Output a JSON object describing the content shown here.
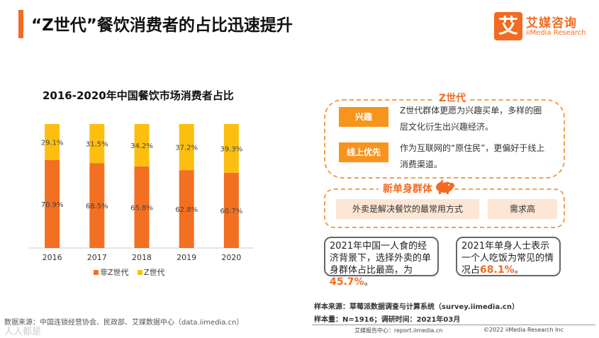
{
  "header": {
    "title": "“Z世代”餐饮消费者的占比迅速提升",
    "accent_color": "#f26b21"
  },
  "logo": {
    "mark": "艾",
    "name_cn": "艾媒咨询",
    "name_en": "iiMedia Research"
  },
  "chart_data": {
    "type": "bar",
    "stacked": true,
    "title": "2016-2020年中国餐饮市场消费者占比",
    "categories": [
      "2016",
      "2017",
      "2018",
      "2019",
      "2020"
    ],
    "series": [
      {
        "name": "非Z世代",
        "color": "#f36f21",
        "values": [
          70.9,
          68.5,
          65.8,
          62.8,
          60.7
        ],
        "labels": [
          "70.9%",
          "68.5%",
          "65.8%",
          "62.8%",
          "60.7%"
        ]
      },
      {
        "name": "Z世代",
        "color": "#fcbf0f",
        "values": [
          29.1,
          31.5,
          34.2,
          37.2,
          39.3
        ],
        "labels": [
          "29.1%",
          "31.5%",
          "34.2%",
          "37.2%",
          "39.3%"
        ]
      }
    ],
    "ylim": [
      0,
      100
    ],
    "xlabel": "",
    "ylabel": "",
    "legend": "bottom"
  },
  "panel": {
    "z_label": "Z世代",
    "z_items": [
      {
        "tag": "兴趣",
        "text": "Z世代群体更愿为兴趣买单，多样的圈层文化衍生出兴趣经济。"
      },
      {
        "tag": "线上优先",
        "text": "作为互联网的“原住民”，更偏好于线上消费渠道。"
      }
    ],
    "single_label": "新单身群体",
    "single_items": [
      "外卖是解决餐饮的最常用方式",
      "需求高"
    ],
    "card1": {
      "text": "2021年中国一人食的经济背景下，选择外卖的单身群体占比最高，为",
      "value": "45.7%",
      "end": "。"
    },
    "card2": {
      "text": "2021年单身人士表示一个人吃饭为常见的情况占",
      "value": "68.1%",
      "end": "。"
    }
  },
  "notes": {
    "sample_source": "样本来源：草莓派数据调查与计算系统（survey.iimedia.cn）",
    "sample_size": "样本量：N=1916；调研时间：2021年03月",
    "data_source": "数据来源：中国连锁经营协会、民政部、艾媒数据中心（data.iimedia.cn）"
  },
  "footer": {
    "left": "艾媒报告中心：report.iimedia.cn",
    "right": "©2022  iiMedia Research  Inc",
    "watermark": "人人都是"
  }
}
